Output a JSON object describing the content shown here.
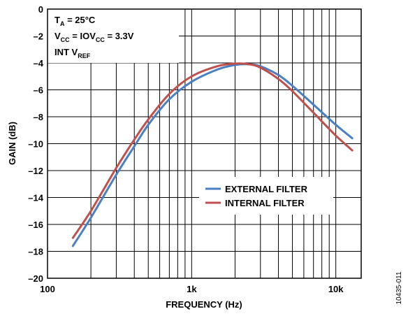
{
  "chart_data": {
    "type": "line",
    "xlabel": "FREQUENCY (Hz)",
    "ylabel": "GAIN (dB)",
    "x_scale": "log",
    "xlim": [
      100,
      15000
    ],
    "ylim": [
      -20,
      0
    ],
    "x_ticks": [
      {
        "value": 100,
        "label": "100"
      },
      {
        "value": 1000,
        "label": "1k"
      },
      {
        "value": 10000,
        "label": "10k"
      }
    ],
    "y_ticks": [
      {
        "value": 0,
        "label": "0"
      },
      {
        "value": -2,
        "label": "–2"
      },
      {
        "value": -4,
        "label": "–4"
      },
      {
        "value": -6,
        "label": "–6"
      },
      {
        "value": -8,
        "label": "–8"
      },
      {
        "value": -10,
        "label": "–10"
      },
      {
        "value": -12,
        "label": "–12"
      },
      {
        "value": -14,
        "label": "–14"
      },
      {
        "value": -16,
        "label": "–16"
      },
      {
        "value": -18,
        "label": "–18"
      },
      {
        "value": -20,
        "label": "–20"
      }
    ],
    "grid": true,
    "legend_position": "lower-right",
    "series": [
      {
        "name": "EXTERNAL FILTER",
        "color": "#4a7fc1",
        "x": [
          150,
          200,
          300,
          400,
          500,
          700,
          1000,
          1500,
          2000,
          2500,
          3000,
          4000,
          5000,
          7000,
          10000,
          13000
        ],
        "y": [
          -17.6,
          -15.5,
          -12.3,
          -10.2,
          -8.6,
          -6.7,
          -5.4,
          -4.5,
          -4.15,
          -4.1,
          -4.25,
          -4.9,
          -5.7,
          -7.1,
          -8.6,
          -9.6
        ]
      },
      {
        "name": "INTERNAL FILTER",
        "color": "#c0504d",
        "x": [
          150,
          200,
          300,
          400,
          500,
          700,
          1000,
          1500,
          2000,
          2500,
          3000,
          4000,
          5000,
          7000,
          10000,
          13000
        ],
        "y": [
          -17.0,
          -15.0,
          -11.8,
          -9.7,
          -8.2,
          -6.3,
          -5.0,
          -4.25,
          -4.05,
          -4.1,
          -4.35,
          -5.2,
          -6.1,
          -7.7,
          -9.4,
          -10.5
        ]
      }
    ]
  },
  "annotation": {
    "ta_main": "T",
    "ta_sub": "A",
    "ta_rest": " = 25°C",
    "vcc_main": "V",
    "vcc_sub": "CC",
    "vcc_mid": " = IOV",
    "vcc_sub2": "CC",
    "vcc_rest": " = 3.3V",
    "ref_main": "INT V",
    "ref_sub": "REF"
  },
  "figure_id": "10435-011"
}
